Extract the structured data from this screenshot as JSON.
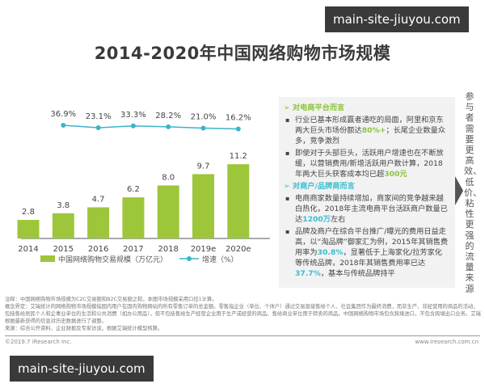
{
  "title": "2014-2020年中国网络购物市场规模",
  "chart_data": {
    "type": "bar+line",
    "categories": [
      "2014",
      "2015",
      "2016",
      "2017",
      "2018",
      "2019e",
      "2020e"
    ],
    "series": [
      {
        "name": "中国网络购物交易规模（万亿元）",
        "type": "bar",
        "values": [
          2.8,
          3.8,
          4.7,
          6.2,
          8.0,
          9.7,
          11.2
        ],
        "labels": [
          "2.8",
          "3.8",
          "4.7",
          "6.2",
          "8.0",
          "9.7",
          "11.2"
        ],
        "color": "#9dc63b"
      },
      {
        "name": "增速（%）",
        "type": "line",
        "values": [
          null,
          36.9,
          23.1,
          33.3,
          28.2,
          21.0,
          16.2
        ],
        "labels": [
          "",
          "36.9%",
          "23.1%",
          "33.3%",
          "28.2%",
          "21.0%",
          "16.2%"
        ],
        "color": "#3bb4c9"
      }
    ],
    "legend": "bottom"
  },
  "panel": {
    "section1": "对电商平台而言",
    "b1": {
      "t1": "行业已基本形成赢者通吃的局面，阿里和京东两大巨头市场份额达",
      "h": "80%+",
      "t2": "；长尾企业数量众多，竞争激烈"
    },
    "b2": {
      "t1": "即使对于头部巨头，活跃用户增速也在不断放缓，以营销费用/新增活跃用户数计算，2018年两大巨头获客成本均已超",
      "h": "300元",
      "t2": ""
    },
    "section2": "对商户/品牌商而言",
    "b3": {
      "t1": "电商商家数量持续增加，商家间的竞争越来越白热化，2018年主流电商平台活跃商户数量已达",
      "h": "1200万",
      "t2": "左右"
    },
    "b4": {
      "t1": "品牌及商户在综合平台推广/曝光的费用日益走高，以“淘品牌”御家汇为例，2015年其销售费用率为",
      "h": "30.8%",
      "t2": "，显著低于上海家化/拉芳家化等传统品牌，2018年其销售费用率已达",
      "h2": "37.7%",
      "t3": "，基本与传统品牌持平"
    }
  },
  "side_text": "参与者需要更高效、低价、粘性更强的流量来源",
  "notes": [
    "注释：中国网络购物市场规模为C2C交易额和B2C交易额之和，本图市场规模采用口径1计算。",
    "概念界定：艾瑞统计的网络购物市场规模指国内用户在国内购物网站的所有零售订单的总金额。零售指企业（单位、个体户）通过交易直接售给个人、社会集团作为最终消费，而非生产、非经营用的商品的活动，包括售给居民个人和企事业单位的生活和公共消费（如办公用品），但不包括售给生产经营企业用于生产或经营的商品、售给商业单位用于转卖的商品。中国网络购物市场包含跨境进口，不包含跨境出口业务。艾瑞根据最新获得的信息对历史数据进行了调整。",
    "来源：综合公开资料、企业财报及专家访谈，根据艾瑞统计模型核算。"
  ],
  "footer": {
    "copyright": "©2019.7 iResearch Inc.",
    "site": "www.iresearch.com.cn"
  },
  "watermark": "main-site-jiuyou.com"
}
